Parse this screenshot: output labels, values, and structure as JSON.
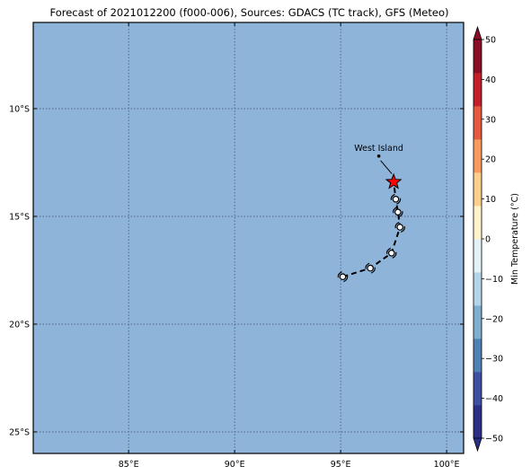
{
  "title": "Forecast of 2021012200 (f000-006), Sources: GDACS (TC track), GFS (Meteo)",
  "map": {
    "lon_range": [
      80.5,
      100.8
    ],
    "lat_range": [
      -26,
      -6
    ],
    "background_color": "#8fb4da",
    "grid": true,
    "lon_ticks": [
      {
        "value": 85,
        "label": "85°E"
      },
      {
        "value": 90,
        "label": "90°E"
      },
      {
        "value": 95,
        "label": "95°E"
      },
      {
        "value": 100,
        "label": "100°E"
      }
    ],
    "lat_ticks": [
      {
        "value": -10,
        "label": "10°S"
      },
      {
        "value": -15,
        "label": "15°S"
      },
      {
        "value": -20,
        "label": "20°S"
      },
      {
        "value": -25,
        "label": "25°S"
      }
    ]
  },
  "place": {
    "name": "West Island",
    "lon": 96.8,
    "lat": -12.2
  },
  "star": {
    "lon": 97.5,
    "lat": -13.4,
    "color": "#ff0000"
  },
  "track": [
    {
      "lon": 95.1,
      "lat": -17.8
    },
    {
      "lon": 96.4,
      "lat": -17.4
    },
    {
      "lon": 97.4,
      "lat": -16.7
    },
    {
      "lon": 97.8,
      "lat": -15.5
    },
    {
      "lon": 97.7,
      "lat": -14.8
    },
    {
      "lon": 97.6,
      "lat": -14.2
    },
    {
      "lon": 97.5,
      "lat": -13.4
    }
  ],
  "colorbar": {
    "label": "Min Temperature (°C)",
    "min": -50,
    "max": 50,
    "ticks": [
      {
        "value": 50,
        "label": "50"
      },
      {
        "value": 40,
        "label": "40"
      },
      {
        "value": 30,
        "label": "30"
      },
      {
        "value": 20,
        "label": "20"
      },
      {
        "value": 10,
        "label": "10"
      },
      {
        "value": 0,
        "label": "0"
      },
      {
        "value": -10,
        "label": "−10"
      },
      {
        "value": -20,
        "label": "−20"
      },
      {
        "value": -30,
        "label": "−30"
      },
      {
        "value": -40,
        "label": "−40"
      },
      {
        "value": -50,
        "label": "−50"
      }
    ],
    "colors": [
      "#2a2f85",
      "#3d4fa3",
      "#4f81b5",
      "#7eaed0",
      "#b2d5e7",
      "#e3f2f7",
      "#fff4c9",
      "#fdcf8c",
      "#f79c5e",
      "#e35a3e",
      "#c21f2a",
      "#8a0d26"
    ]
  }
}
